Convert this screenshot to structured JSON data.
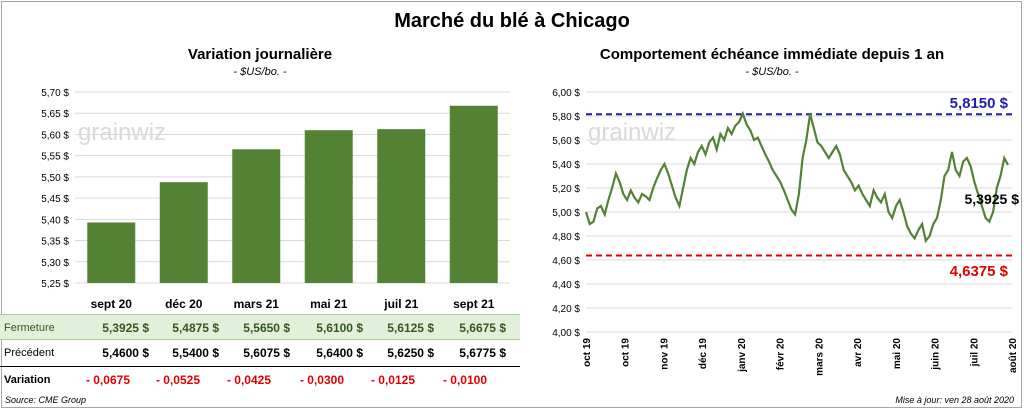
{
  "title": "Marché du blé à Chicago",
  "left": {
    "title": "Variation journalière",
    "subtitle": "- $US/bo. -",
    "watermark": "grainwiz"
  },
  "right": {
    "title": "Comportement échéance immédiate depuis 1 an",
    "subtitle": "- $US/bo. -",
    "watermark": "grainwiz",
    "high_label": "5,8150 $",
    "low_label": "4,6375 $",
    "last_label": "5,3925 $"
  },
  "table": {
    "ferm_label": "Fermeture",
    "prec_label": "Précédent",
    "var_label": "Variation",
    "fermeture": [
      "5,3925  $",
      "5,4875  $",
      "5,5650  $",
      "5,6100  $",
      "5,6125  $",
      "5,6675  $"
    ],
    "precedent": [
      "5,4600  $",
      "5,5400  $",
      "5,6075  $",
      "5,6400  $",
      "5,6250  $",
      "5,6775  $"
    ],
    "variation": [
      "- 0,0675",
      "- 0,0525",
      "- 0,0425",
      "- 0,0300",
      "- 0,0125",
      "- 0,0100"
    ]
  },
  "source": "Source: CME Group",
  "updated": "Mise à jour: ven 28 août 2020",
  "colors": {
    "bar": "#548235",
    "line": "#548235",
    "high": "#1f1fa8",
    "low": "#e00000"
  },
  "chart_data": [
    {
      "type": "bar",
      "title": "Variation journalière",
      "ylabel": "$US/bo.",
      "categories": [
        "sept 20",
        "déc 20",
        "mars 21",
        "mai 21",
        "juil 21",
        "sept 21"
      ],
      "values": [
        5.3925,
        5.4875,
        5.565,
        5.61,
        5.6125,
        5.6675
      ],
      "ylim": [
        5.25,
        5.7
      ],
      "yticks": [
        5.25,
        5.3,
        5.35,
        5.4,
        5.45,
        5.5,
        5.55,
        5.6,
        5.65,
        5.7
      ],
      "ytick_labels": [
        "5,25 $",
        "5,30 $",
        "5,35 $",
        "5,40 $",
        "5,45 $",
        "5,50 $",
        "5,55 $",
        "5,60 $",
        "5,65 $",
        "5,70 $"
      ],
      "grid": true
    },
    {
      "type": "line",
      "title": "Comportement échéance immédiate depuis 1 an",
      "ylabel": "$US/bo.",
      "ylim": [
        4.0,
        6.0
      ],
      "yticks": [
        4.0,
        4.2,
        4.4,
        4.6,
        4.8,
        5.0,
        5.2,
        5.4,
        5.6,
        5.8,
        6.0
      ],
      "ytick_labels": [
        "4,00 $",
        "4,20 $",
        "4,40 $",
        "4,60 $",
        "4,80 $",
        "5,00 $",
        "5,20 $",
        "5,40 $",
        "5,60 $",
        "5,80 $",
        "6,00 $"
      ],
      "xtick_labels": [
        "oct 19",
        "oct 19",
        "nov 19",
        "déc 19",
        "janv 20",
        "févr 20",
        "mars 20",
        "avr 20",
        "mai 20",
        "juin 20",
        "juil 20",
        "août 20"
      ],
      "grid": true,
      "reference_lines": [
        {
          "name": "high",
          "value": 5.815,
          "label": "5,8150 $"
        },
        {
          "name": "low",
          "value": 4.6375,
          "label": "4,6375 $"
        }
      ],
      "series": [
        {
          "values": [
            5.0,
            4.9,
            4.92,
            5.03,
            5.05,
            4.98,
            5.1,
            5.2,
            5.32,
            5.25,
            5.15,
            5.1,
            5.18,
            5.12,
            5.08,
            5.15,
            5.13,
            5.1,
            5.2,
            5.28,
            5.35,
            5.4,
            5.32,
            5.22,
            5.12,
            5.05,
            5.2,
            5.35,
            5.45,
            5.4,
            5.5,
            5.55,
            5.48,
            5.58,
            5.62,
            5.52,
            5.65,
            5.6,
            5.7,
            5.65,
            5.72,
            5.75,
            5.82,
            5.73,
            5.68,
            5.6,
            5.62,
            5.55,
            5.48,
            5.42,
            5.35,
            5.3,
            5.25,
            5.18,
            5.1,
            5.02,
            4.98,
            5.15,
            5.45,
            5.6,
            5.815,
            5.7,
            5.58,
            5.55,
            5.5,
            5.45,
            5.5,
            5.55,
            5.48,
            5.35,
            5.3,
            5.25,
            5.18,
            5.22,
            5.15,
            5.1,
            5.05,
            5.18,
            5.12,
            5.08,
            5.15,
            5.0,
            4.95,
            5.05,
            5.1,
            5.0,
            4.88,
            4.82,
            4.78,
            4.85,
            4.9,
            4.76,
            4.8,
            4.9,
            4.95,
            5.1,
            5.3,
            5.35,
            5.5,
            5.35,
            5.3,
            5.42,
            5.45,
            5.38,
            5.25,
            5.15,
            5.05,
            4.95,
            4.92,
            5.0,
            5.2,
            5.3,
            5.45,
            5.3925
          ]
        }
      ]
    }
  ]
}
